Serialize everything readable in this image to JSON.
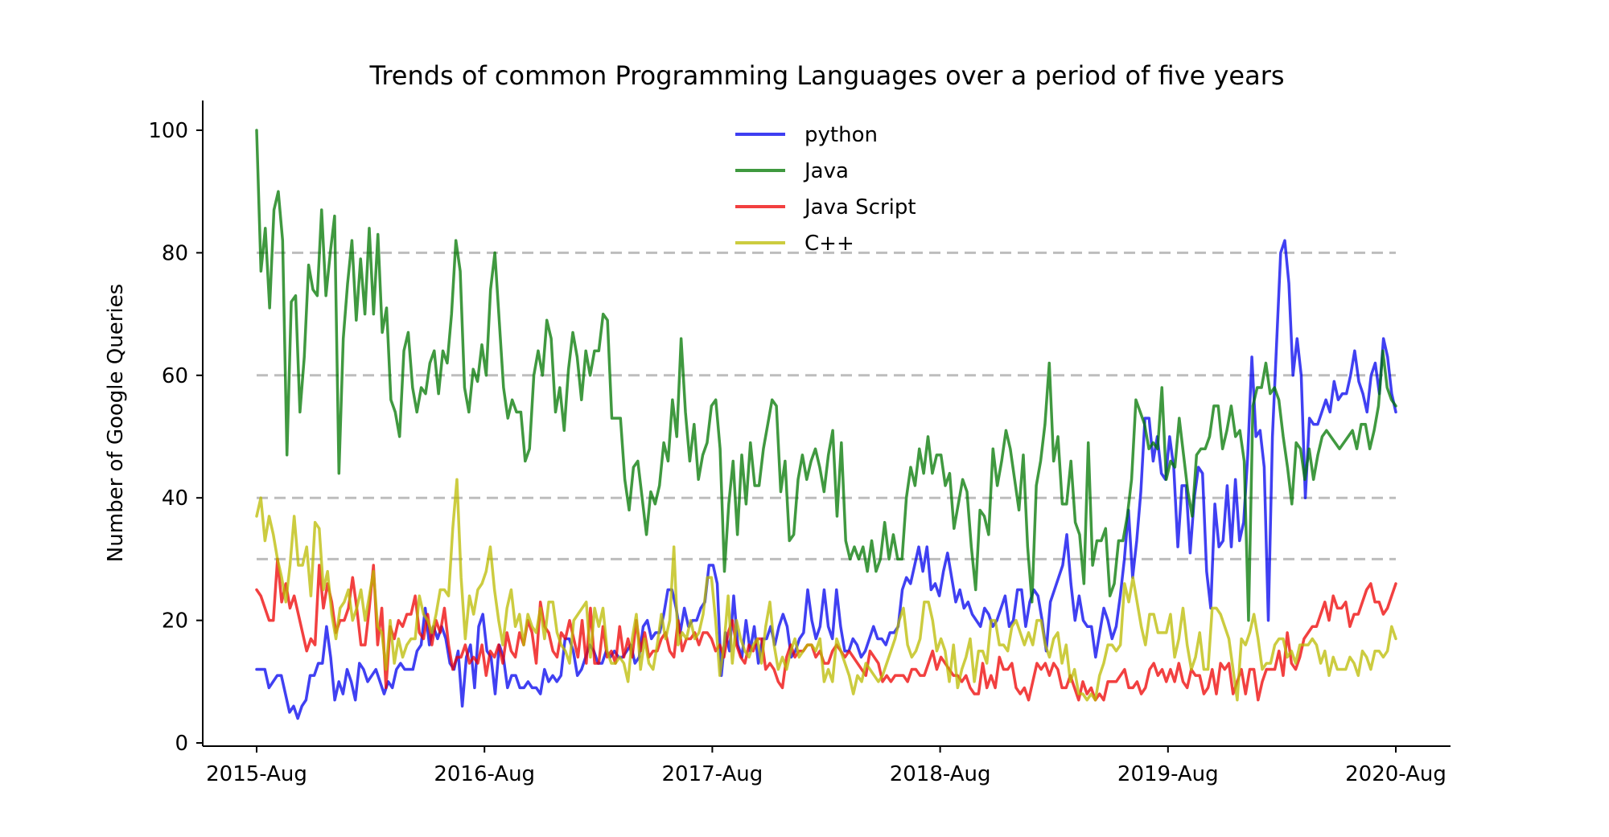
{
  "chart_data": {
    "type": "line",
    "title": "Trends of common Programming Languages over a period of five years",
    "xlabel": "",
    "ylabel": "Number of Google Queries",
    "x_ticks": [
      "2015-Aug",
      "2016-Aug",
      "2017-Aug",
      "2018-Aug",
      "2019-Aug",
      "2020-Aug"
    ],
    "x_start": "2015-Aug",
    "x_end": "2020-Aug",
    "ylim": [
      0,
      105
    ],
    "y_ticks": [
      0,
      20,
      40,
      60,
      80,
      100
    ],
    "grid": false,
    "reference_lines": [
      30,
      40,
      60,
      80
    ],
    "legend_position": "top-center",
    "series": [
      {
        "name": "python",
        "color": "#0000ee",
        "values": [
          12,
          12,
          12,
          9,
          10,
          11,
          11,
          8,
          5,
          6,
          4,
          6,
          7,
          11,
          11,
          13,
          13,
          19,
          14,
          7,
          10,
          8,
          12,
          10,
          7,
          13,
          12,
          10,
          11,
          12,
          10,
          8,
          10,
          9,
          12,
          13,
          12,
          12,
          12,
          15,
          16,
          22,
          16,
          19,
          17,
          19,
          17,
          13,
          12,
          15,
          6,
          14,
          16,
          9,
          19,
          21,
          15,
          14,
          8,
          16,
          14,
          9,
          11,
          11,
          9,
          9,
          10,
          9,
          9,
          8,
          12,
          10,
          11,
          10,
          11,
          17,
          17,
          15,
          11,
          12,
          14,
          16,
          15,
          13,
          13,
          15,
          14,
          15,
          14,
          14,
          15,
          16,
          13,
          14,
          19,
          20,
          17,
          18,
          18,
          21,
          25,
          25,
          22,
          18,
          22,
          19,
          20,
          20,
          22,
          23,
          29,
          29,
          26,
          11,
          18,
          15,
          24,
          16,
          14,
          20,
          15,
          19,
          13,
          17,
          17,
          19,
          16,
          19,
          21,
          19,
          14,
          15,
          17,
          18,
          25,
          20,
          17,
          19,
          25,
          19,
          17,
          25,
          19,
          15,
          15,
          17,
          16,
          14,
          15,
          17,
          19,
          17,
          17,
          16,
          18,
          18,
          19,
          25,
          27,
          26,
          29,
          32,
          28,
          32,
          25,
          26,
          24,
          28,
          31,
          27,
          23,
          25,
          22,
          23,
          21,
          20,
          19,
          22,
          21,
          19,
          20,
          22,
          24,
          19,
          20,
          25,
          25,
          19,
          23,
          25,
          24,
          20,
          15,
          23,
          25,
          27,
          29,
          34,
          26,
          20,
          24,
          20,
          19,
          19,
          14,
          18,
          22,
          20,
          17,
          19,
          24,
          30,
          38,
          27,
          33,
          41,
          53,
          53,
          46,
          50,
          44,
          43,
          50,
          45,
          32,
          42,
          42,
          31,
          40,
          45,
          44,
          28,
          22,
          39,
          32,
          33,
          42,
          32,
          43,
          33,
          36,
          47,
          63,
          50,
          51,
          45,
          20,
          50,
          65,
          80,
          82,
          75,
          60,
          66,
          60,
          40,
          53,
          52,
          52,
          54,
          56,
          54,
          59,
          56,
          57,
          57,
          60,
          64,
          59,
          57,
          54,
          60,
          62,
          57,
          66,
          63,
          57,
          54
        ]
      },
      {
        "name": "Java",
        "color": "#007700",
        "values": [
          100,
          77,
          84,
          71,
          87,
          90,
          82,
          47,
          72,
          73,
          54,
          63,
          78,
          74,
          73,
          87,
          73,
          80,
          86,
          44,
          66,
          75,
          82,
          69,
          79,
          70,
          84,
          70,
          83,
          67,
          71,
          56,
          54,
          50,
          64,
          67,
          58,
          54,
          58,
          57,
          62,
          64,
          57,
          64,
          62,
          70,
          82,
          77,
          58,
          54,
          61,
          59,
          65,
          60,
          74,
          80,
          69,
          58,
          53,
          56,
          54,
          54,
          46,
          48,
          60,
          64,
          60,
          69,
          66,
          54,
          58,
          51,
          61,
          67,
          63,
          56,
          64,
          60,
          64,
          64,
          70,
          69,
          53,
          53,
          53,
          43,
          38,
          45,
          46,
          40,
          34,
          41,
          39,
          42,
          49,
          46,
          56,
          50,
          66,
          54,
          46,
          52,
          43,
          47,
          49,
          55,
          56,
          48,
          28,
          39,
          46,
          34,
          47,
          39,
          49,
          42,
          42,
          48,
          52,
          56,
          55,
          41,
          46,
          33,
          34,
          43,
          47,
          43,
          46,
          48,
          45,
          41,
          47,
          51,
          37,
          49,
          33,
          30,
          32,
          30,
          32,
          28,
          33,
          28,
          30,
          36,
          30,
          34,
          30,
          30,
          40,
          45,
          42,
          48,
          44,
          50,
          44,
          47,
          47,
          42,
          44,
          35,
          39,
          43,
          41,
          32,
          25,
          38,
          37,
          34,
          48,
          42,
          46,
          51,
          48,
          43,
          38,
          47,
          32,
          23,
          42,
          46,
          52,
          62,
          46,
          50,
          39,
          39,
          46,
          36,
          34,
          26,
          49,
          29,
          33,
          33,
          35,
          24,
          26,
          33,
          33,
          37,
          43,
          56,
          54,
          52,
          48,
          49,
          48,
          58,
          43,
          46,
          45,
          53,
          47,
          41,
          37,
          47,
          48,
          48,
          50,
          55,
          55,
          48,
          51,
          55,
          50,
          51,
          46,
          20,
          55,
          58,
          58,
          62,
          57,
          58,
          56,
          50,
          45,
          39,
          49,
          48,
          43,
          48,
          43,
          47,
          50,
          51,
          50,
          49,
          48,
          49,
          50,
          51,
          48,
          52,
          52,
          48,
          51,
          55,
          64,
          58,
          56,
          55
        ]
      },
      {
        "name": "Java Script",
        "color": "#ee0000",
        "values": [
          25,
          24,
          22,
          20,
          20,
          30,
          23,
          26,
          22,
          24,
          21,
          18,
          15,
          17,
          16,
          29,
          22,
          26,
          23,
          18,
          20,
          20,
          22,
          27,
          22,
          16,
          16,
          22,
          29,
          16,
          22,
          9,
          19,
          17,
          20,
          19,
          21,
          21,
          24,
          18,
          17,
          21,
          16,
          20,
          18,
          22,
          16,
          12,
          14,
          14,
          16,
          13,
          14,
          13,
          16,
          11,
          15,
          14,
          16,
          13,
          18,
          15,
          14,
          18,
          16,
          20,
          18,
          13,
          23,
          19,
          18,
          15,
          14,
          18,
          17,
          20,
          17,
          14,
          20,
          13,
          22,
          13,
          13,
          19,
          14,
          15,
          13,
          19,
          14,
          17,
          14,
          20,
          15,
          18,
          14,
          15,
          15,
          17,
          18,
          15,
          14,
          20,
          15,
          17,
          17,
          18,
          16,
          18,
          18,
          17,
          15,
          16,
          14,
          18,
          20,
          16,
          14,
          13,
          16,
          15,
          17,
          17,
          12,
          13,
          12,
          10,
          9,
          14,
          16,
          14,
          15,
          15,
          16,
          16,
          14,
          15,
          13,
          13,
          15,
          16,
          15,
          14,
          15,
          14,
          13,
          12,
          11,
          15,
          14,
          13,
          10,
          11,
          10,
          11,
          11,
          11,
          10,
          12,
          12,
          11,
          11,
          13,
          15,
          12,
          14,
          13,
          12,
          11,
          11,
          10,
          11,
          9,
          8,
          8,
          13,
          9,
          11,
          9,
          14,
          12,
          12,
          13,
          9,
          8,
          9,
          7,
          10,
          13,
          12,
          13,
          11,
          13,
          12,
          9,
          9,
          11,
          9,
          7,
          10,
          8,
          9,
          7,
          8,
          7,
          10,
          10,
          10,
          11,
          12,
          9,
          9,
          10,
          8,
          9,
          12,
          13,
          11,
          12,
          10,
          12,
          10,
          13,
          10,
          9,
          12,
          11,
          11,
          8,
          9,
          12,
          8,
          13,
          12,
          13,
          8,
          10,
          12,
          8,
          12,
          12,
          7,
          10,
          12,
          12,
          12,
          15,
          11,
          18,
          13,
          12,
          14,
          17,
          18,
          19,
          19,
          21,
          23,
          20,
          24,
          22,
          22,
          23,
          19,
          21,
          21,
          23,
          25,
          26,
          23,
          23,
          21,
          22,
          24,
          26
        ]
      },
      {
        "name": "C++",
        "color": "#bbbb00",
        "values": [
          37,
          40,
          33,
          37,
          34,
          30,
          27,
          23,
          29,
          37,
          29,
          29,
          32,
          24,
          36,
          35,
          25,
          28,
          21,
          17,
          22,
          23,
          25,
          20,
          22,
          25,
          20,
          24,
          28,
          19,
          18,
          12,
          20,
          13,
          17,
          14,
          16,
          17,
          17,
          24,
          21,
          20,
          18,
          21,
          25,
          25,
          24,
          35,
          43,
          27,
          17,
          24,
          21,
          25,
          26,
          28,
          32,
          25,
          20,
          16,
          22,
          25,
          19,
          21,
          16,
          21,
          19,
          18,
          22,
          17,
          23,
          23,
          18,
          16,
          15,
          13,
          20,
          21,
          22,
          23,
          14,
          22,
          19,
          22,
          15,
          13,
          13,
          14,
          13,
          10,
          17,
          21,
          12,
          17,
          13,
          12,
          16,
          21,
          17,
          20,
          32,
          16,
          18,
          17,
          20,
          17,
          18,
          21,
          27,
          27,
          20,
          11,
          16,
          24,
          13,
          20,
          17,
          15,
          14,
          16,
          17,
          13,
          19,
          23,
          16,
          12,
          14,
          12,
          15,
          17,
          14,
          15,
          16,
          16,
          15,
          17,
          10,
          12,
          10,
          17,
          15,
          13,
          11,
          8,
          11,
          10,
          13,
          12,
          11,
          10,
          11,
          13,
          15,
          17,
          20,
          22,
          16,
          14,
          15,
          17,
          23,
          23,
          20,
          15,
          17,
          15,
          10,
          16,
          9,
          12,
          14,
          17,
          10,
          15,
          15,
          13,
          20,
          20,
          16,
          16,
          15,
          19,
          20,
          18,
          16,
          18,
          16,
          20,
          20,
          16,
          14,
          17,
          18,
          13,
          16,
          10,
          12,
          8,
          8,
          7,
          8,
          7,
          11,
          13,
          16,
          16,
          15,
          16,
          26,
          23,
          27,
          23,
          19,
          16,
          21,
          21,
          18,
          18,
          18,
          21,
          14,
          17,
          22,
          16,
          12,
          14,
          18,
          12,
          12,
          22,
          22,
          21,
          19,
          17,
          12,
          7,
          17,
          16,
          18,
          21,
          17,
          12,
          13,
          13,
          16,
          17,
          17,
          14,
          15,
          13,
          16,
          16,
          16,
          17,
          16,
          13,
          15,
          11,
          14,
          12,
          12,
          12,
          14,
          13,
          11,
          15,
          14,
          12,
          15,
          15,
          14,
          15,
          19,
          17
        ]
      }
    ]
  }
}
